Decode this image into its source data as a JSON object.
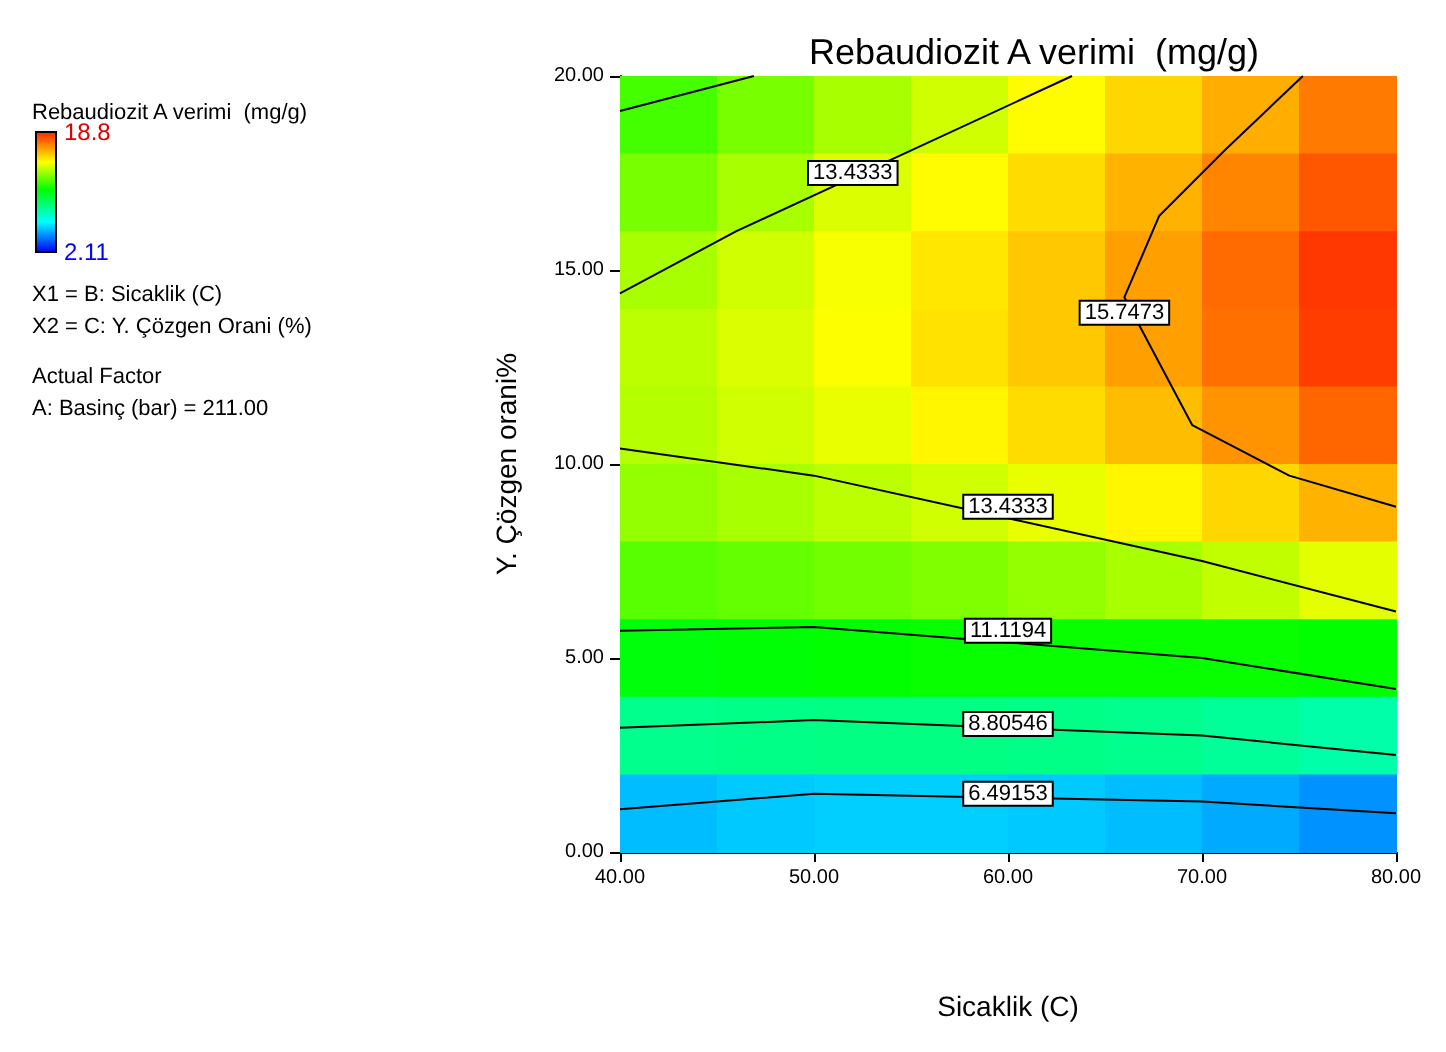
{
  "chart_data": {
    "type": "heatmap",
    "title": "Rebaudiozit A verimi  (mg/g)",
    "xlabel": "Sicaklik (C)",
    "ylabel": "Y. Çözgen orani%",
    "clabel": "Rebaudiozit A verimi  (mg/g)",
    "xlim": [
      40,
      80
    ],
    "ylim": [
      0,
      20
    ],
    "xticks": [
      {
        "value": 40,
        "label": "40.00"
      },
      {
        "value": 50,
        "label": "50.00"
      },
      {
        "value": 60,
        "label": "60.00"
      },
      {
        "value": 70,
        "label": "70.00"
      },
      {
        "value": 80,
        "label": "80.00"
      }
    ],
    "yticks": [
      {
        "value": 0,
        "label": "0.00"
      },
      {
        "value": 5,
        "label": "5.00"
      },
      {
        "value": 10,
        "label": "10.00"
      },
      {
        "value": 15,
        "label": "15.00"
      },
      {
        "value": 20,
        "label": "20.00"
      }
    ],
    "clim": [
      2.11,
      18.8
    ],
    "cticks": [
      2.11,
      18.8
    ],
    "cells": [
      [
        11.8,
        12.6,
        13.3,
        13.9,
        14.7,
        15.4,
        16.2,
        17.2
      ],
      [
        12.6,
        13.3,
        14.1,
        14.7,
        15.3,
        16.1,
        17.0,
        17.9
      ],
      [
        13.3,
        13.9,
        14.5,
        15.1,
        15.7,
        16.5,
        17.5,
        18.5
      ],
      [
        13.6,
        14.1,
        14.6,
        15.2,
        15.7,
        16.5,
        17.4,
        18.4
      ],
      [
        13.5,
        13.9,
        14.3,
        14.8,
        15.3,
        15.9,
        16.7,
        17.6
      ],
      [
        13.0,
        13.3,
        13.6,
        13.9,
        14.3,
        14.8,
        15.4,
        16.1
      ],
      [
        12.1,
        12.3,
        12.5,
        12.7,
        13.0,
        13.3,
        13.7,
        14.2
      ],
      [
        10.6,
        10.7,
        10.8,
        10.9,
        10.9,
        10.9,
        10.9,
        10.8
      ],
      [
        8.3,
        8.4,
        8.5,
        8.5,
        8.4,
        8.3,
        8.1,
        7.8
      ],
      [
        5.2,
        5.4,
        5.5,
        5.5,
        5.4,
        5.2,
        4.9,
        4.5
      ]
    ],
    "series": [
      {
        "type": "line",
        "color": "#000000",
        "x": [
          40,
          50,
          70,
          80
        ],
        "values": [
          1.1,
          1.5,
          1.3,
          1.0
        ]
      },
      {
        "type": "line",
        "color": "#000000",
        "x": [
          40,
          50,
          70,
          80
        ],
        "values": [
          3.2,
          3.4,
          3.0,
          2.5
        ]
      },
      {
        "type": "line",
        "color": "#000000",
        "x": [
          40,
          50,
          70,
          80
        ],
        "values": [
          5.7,
          5.8,
          5.0,
          4.2
        ]
      },
      {
        "type": "line",
        "color": "#000000",
        "x": [
          40,
          50,
          70,
          80
        ],
        "values": [
          10.4,
          9.7,
          7.5,
          6.2
        ]
      },
      {
        "type": "line",
        "color": "#000000",
        "x": [
          40,
          46,
          63.3
        ],
        "values": [
          14.4,
          16.0,
          20
        ]
      },
      {
        "type": "line",
        "color": "#000000",
        "x": [
          40,
          46.9
        ],
        "values": [
          19.1,
          20
        ]
      },
      {
        "type": "line",
        "color": "#000000",
        "x": [
          75.2,
          71.2,
          67.8,
          66,
          69.5,
          74.5,
          80
        ],
        "values": [
          20,
          18.1,
          16.4,
          14.3,
          11.0,
          9.7,
          8.9
        ]
      }
    ],
    "annotations": [
      {
        "text": "13.4333",
        "x": 52,
        "y": 17.5
      },
      {
        "text": "15.7473",
        "x": 66,
        "y": 13.9
      },
      {
        "text": "13.4333",
        "x": 60,
        "y": 8.9
      },
      {
        "text": "11.1194",
        "x": 60,
        "y": 5.7
      },
      {
        "text": "8.80546",
        "x": 60,
        "y": 3.3
      },
      {
        "text": "6.49153",
        "x": 60,
        "y": 1.5
      },
      "X1 = B: Sicaklik (C)",
      "X2 = C: Y. Çözgen Orani (%)",
      "Actual Factor",
      "A: Basinç (bar) = 211.00"
    ]
  }
}
